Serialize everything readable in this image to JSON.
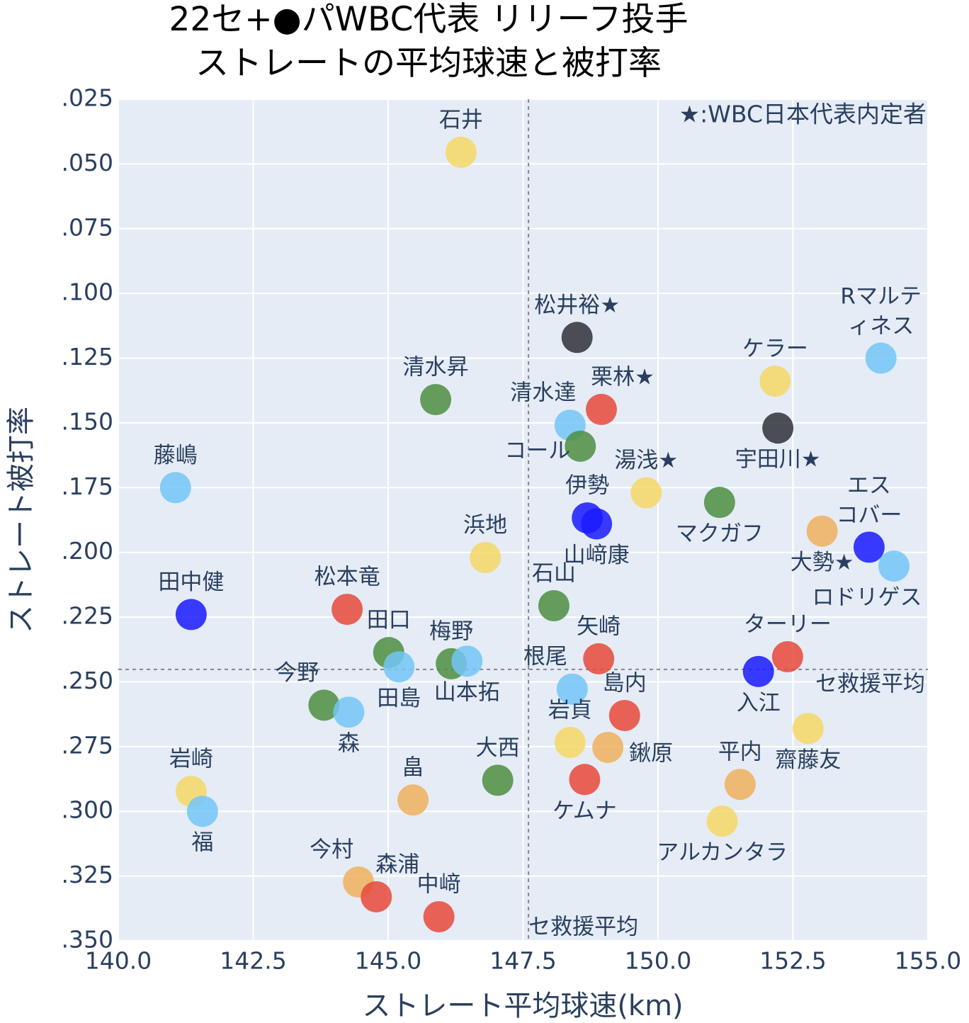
{
  "chart_data": {
    "type": "scatter",
    "title": "22セ+●パWBC代表 リリーフ投手\nストレートの平均球速と被打率",
    "xlabel": "ストレート平均球速(km)",
    "ylabel": "ストレート被打率",
    "annotation": "★:WBC日本代表内定者",
    "xlim": [
      140,
      155
    ],
    "ylim": [
      0.35,
      0.025
    ],
    "xticks": [
      {
        "value": 140,
        "label": "140.0"
      },
      142.5,
      {
        "value": 145,
        "label": "145.0"
      },
      147.5,
      {
        "value": 150,
        "label": "150.0"
      },
      152.5,
      {
        "value": 155,
        "label": "155.0"
      }
    ],
    "yticks": [
      {
        "value": 0.025,
        "label": ".025"
      },
      {
        "value": 0.05,
        "label": ".050"
      },
      {
        "value": 0.075,
        "label": ".075"
      },
      {
        "value": 0.1,
        "label": ".100"
      },
      {
        "value": 0.125,
        "label": ".125"
      },
      {
        "value": 0.15,
        "label": ".150"
      },
      {
        "value": 0.175,
        "label": ".175"
      },
      {
        "value": 0.2,
        "label": ".200"
      },
      {
        "value": 0.225,
        "label": ".225"
      },
      {
        "value": 0.25,
        "label": ".250"
      },
      {
        "value": 0.275,
        "label": ".275"
      },
      {
        "value": 0.3,
        "label": ".300"
      },
      {
        "value": 0.325,
        "label": ".325"
      },
      {
        "value": 0.35,
        "label": ".350"
      }
    ],
    "grid": true,
    "vline": {
      "value": 147.6,
      "label": "セ救援平均"
    },
    "hline": {
      "value": 0.2452,
      "label": "セ救援平均"
    },
    "point_labels": [
      "石井",
      "松井裕★",
      "Rマルテ\nィネス",
      "ケラー",
      "清水昇",
      "栗林★",
      "清水達",
      "宇田川★",
      "コール",
      "藤嶋",
      "湯浅★",
      "マクガフ",
      "伊勢",
      "山﨑康",
      "エス\nコバー",
      "大勢★",
      "ロドリゲス",
      "浜地",
      "石山",
      "田中健",
      "松本竜",
      "田口",
      "田島",
      "梅野",
      "山本拓",
      "矢崎",
      "根尾",
      "島内",
      "岩貞",
      "鍬原",
      "ケムナ",
      "ターリー",
      "入江",
      "齋藤友",
      "平内",
      "アルカンタラ",
      "大西",
      "畠",
      "今野",
      "森",
      "岩崎",
      "福",
      "今村",
      "森浦",
      "中﨑"
    ],
    "x": [
      146.35,
      148.5,
      154.13,
      152.17,
      145.88,
      148.95,
      148.37,
      152.22,
      148.56,
      141.06,
      149.78,
      151.14,
      148.69,
      148.86,
      153.91,
      153.04,
      154.37,
      146.8,
      148.07,
      141.35,
      144.24,
      145.01,
      145.2,
      146.17,
      146.46,
      148.9,
      148.41,
      149.38,
      148.37,
      149.07,
      148.64,
      152.4,
      151.86,
      152.78,
      151.52,
      151.19,
      147.03,
      145.46,
      143.81,
      144.27,
      141.35,
      141.56,
      144.45,
      144.78,
      145.94
    ],
    "values": [
      0.0455,
      0.117,
      0.125,
      0.1339,
      0.141,
      0.1448,
      0.1509,
      0.152,
      0.159,
      0.175,
      0.177,
      0.1807,
      0.1867,
      0.189,
      0.198,
      0.1918,
      0.2053,
      0.202,
      0.2206,
      0.224,
      0.222,
      0.2387,
      0.2442,
      0.243,
      0.242,
      0.2411,
      0.2528,
      0.263,
      0.2734,
      0.2753,
      0.2877,
      0.2403,
      0.246,
      0.268,
      0.2896,
      0.3038,
      0.288,
      0.2956,
      0.259,
      0.2617,
      0.2923,
      0.3,
      0.3273,
      0.333,
      0.3407
    ],
    "colors": [
      "#f6d865",
      "#2f3237",
      "#73c6f7",
      "#f6d865",
      "#4e8e40",
      "#e8493a",
      "#73c6f7",
      "#2f3237",
      "#4e8e40",
      "#73c6f7",
      "#f6d865",
      "#4e8e40",
      "#1a1aff",
      "#1a1aff",
      "#1a1aff",
      "#f0b05d",
      "#73c6f7",
      "#f6d865",
      "#4e8e40",
      "#1a1aff",
      "#e8493a",
      "#4e8e40",
      "#73c6f7",
      "#4e8e40",
      "#73c6f7",
      "#e8493a",
      "#73c6f7",
      "#e8493a",
      "#f6d865",
      "#f0b05d",
      "#e8493a",
      "#e8493a",
      "#1a1aff",
      "#f6d865",
      "#f0b05d",
      "#f6d865",
      "#4e8e40",
      "#f0b05d",
      "#4e8e40",
      "#73c6f7",
      "#f6d865",
      "#73c6f7",
      "#f0b05d",
      "#e8493a",
      "#e8493a"
    ],
    "label_positions": [
      "top",
      "top",
      "top",
      "top",
      "top",
      "top right",
      "top left",
      "bottom",
      "left",
      "top",
      "top",
      "bottom",
      "top",
      "bottom",
      "top",
      "bottom",
      "bottom left",
      "top",
      "top",
      "top",
      "top",
      "top",
      "bottom",
      "top",
      "bottom",
      "top",
      "top left",
      "top",
      "top",
      "right",
      "bottom",
      "top",
      "bottom",
      "bottom",
      "top",
      "bottom",
      "top",
      "top",
      "top left",
      "bottom",
      "top",
      "bottom",
      "top left",
      "top right",
      "top"
    ]
  }
}
